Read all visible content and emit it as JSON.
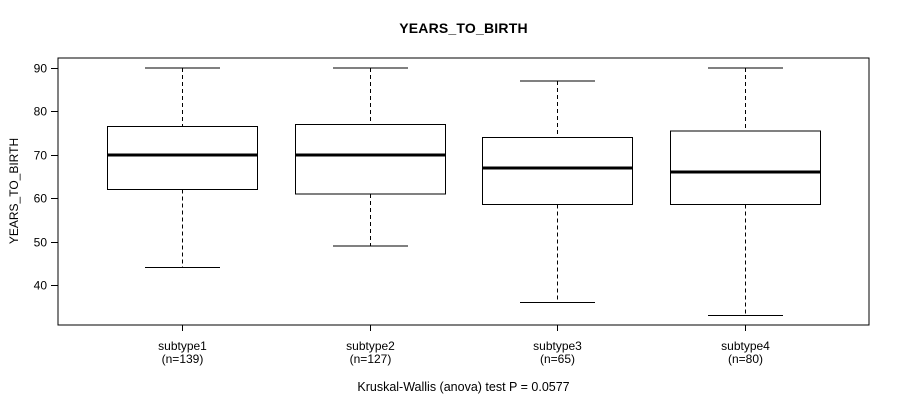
{
  "colors": {
    "line": "#000000",
    "background": "#ffffff"
  },
  "chart_data": {
    "type": "boxplot",
    "title": "YEARS_TO_BIRTH",
    "ylabel": "YEARS_TO_BIRTH",
    "xlabel": "",
    "y_ticks": [
      40,
      50,
      60,
      70,
      80,
      90
    ],
    "ylim": [
      30.8,
      92.3
    ],
    "grid": "off",
    "legend": "none",
    "annotation": "Kruskal-Wallis (anova) test P = 0.0577",
    "groups": [
      {
        "label": "subtype1",
        "sublabel": "(n=139)",
        "n": 139,
        "whisker_low": 44,
        "q1": 62,
        "median": 70,
        "q3": 76.5,
        "whisker_high": 90
      },
      {
        "label": "subtype2",
        "sublabel": "(n=127)",
        "n": 127,
        "whisker_low": 49,
        "q1": 61,
        "median": 70,
        "q3": 77,
        "whisker_high": 90
      },
      {
        "label": "subtype3",
        "sublabel": "(n=65)",
        "n": 65,
        "whisker_low": 36,
        "q1": 58.5,
        "median": 67,
        "q3": 74,
        "whisker_high": 87
      },
      {
        "label": "subtype4",
        "sublabel": "(n=80)",
        "n": 80,
        "whisker_low": 33,
        "q1": 58.5,
        "median": 66,
        "q3": 75.5,
        "whisker_high": 90
      }
    ]
  }
}
